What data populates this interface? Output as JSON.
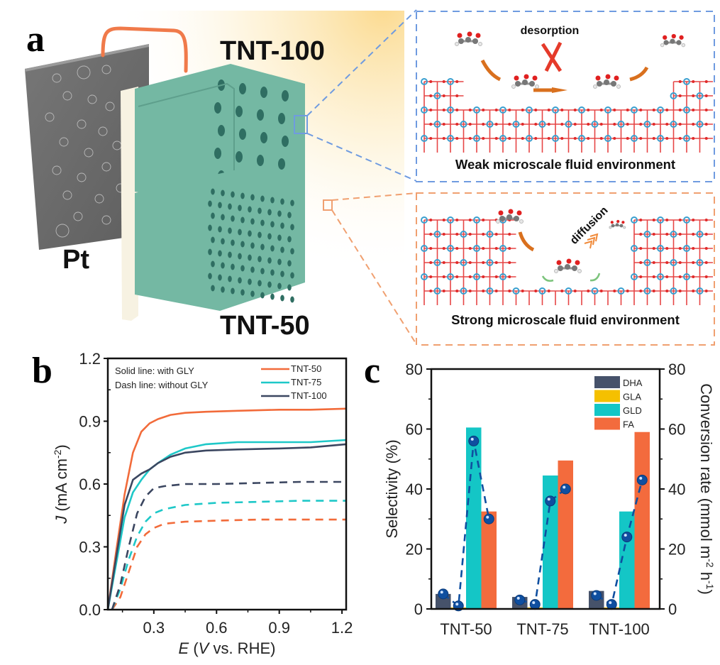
{
  "panel_a": {
    "letter": "a",
    "labels": {
      "pt": "Pt",
      "tnt100": "TNT-100",
      "tnt50": "TNT-50"
    },
    "inset_top": {
      "caption": "Weak microscale fluid environment",
      "annotation": "desorption",
      "border_color": "#6f9be0"
    },
    "inset_bottom": {
      "caption": "Strong microscale fluid environment",
      "annotation": "diffusion",
      "border_color": "#f0a070"
    },
    "colors": {
      "nanotube": "#74b8a3",
      "wire": "#f07a4a",
      "pt_plate": "#6b6b6b",
      "glow": "#fbd889"
    }
  },
  "panel_b": {
    "letter": "b"
  },
  "panel_c": {
    "letter": "c"
  },
  "chart_data": [
    {
      "type": "line",
      "title": "",
      "xlabel": "E (V vs. RHE)",
      "ylabel": "J (mA cm-2)",
      "xlim": [
        0.08,
        1.22
      ],
      "ylim": [
        0.0,
        1.2
      ],
      "xticks": [
        "0.3",
        "0.6",
        "0.9",
        "1.2"
      ],
      "yticks": [
        "0.0",
        "0.3",
        "0.6",
        "0.9",
        "1.2"
      ],
      "grid": false,
      "annotations": [
        "Solid line: with GLY",
        "Dash line: without GLY"
      ],
      "legend": {
        "placement": "top-right",
        "entries": [
          "TNT-50",
          "TNT-75",
          "TNT-100"
        ]
      },
      "series": [
        {
          "name": "TNT-50",
          "style": "solid",
          "color": "#f26b3a",
          "x": [
            0.08,
            0.12,
            0.16,
            0.2,
            0.24,
            0.28,
            0.32,
            0.38,
            0.45,
            0.55,
            0.7,
            0.9,
            1.05,
            1.22
          ],
          "y": [
            0.0,
            0.28,
            0.55,
            0.75,
            0.85,
            0.89,
            0.91,
            0.93,
            0.94,
            0.945,
            0.95,
            0.955,
            0.955,
            0.96
          ]
        },
        {
          "name": "TNT-75",
          "style": "solid",
          "color": "#1ec8c8",
          "x": [
            0.08,
            0.12,
            0.16,
            0.2,
            0.24,
            0.28,
            0.32,
            0.38,
            0.45,
            0.55,
            0.7,
            0.9,
            1.05,
            1.22
          ],
          "y": [
            0.0,
            0.22,
            0.44,
            0.56,
            0.62,
            0.67,
            0.7,
            0.74,
            0.77,
            0.79,
            0.8,
            0.8,
            0.8,
            0.81
          ]
        },
        {
          "name": "TNT-100",
          "style": "solid",
          "color": "#3b4660",
          "x": [
            0.08,
            0.12,
            0.16,
            0.2,
            0.24,
            0.28,
            0.32,
            0.38,
            0.45,
            0.55,
            0.7,
            0.9,
            1.05,
            1.22
          ],
          "y": [
            0.0,
            0.25,
            0.5,
            0.62,
            0.65,
            0.67,
            0.7,
            0.73,
            0.75,
            0.76,
            0.765,
            0.77,
            0.775,
            0.79
          ]
        },
        {
          "name": "TNT-50 (without GLY)",
          "style": "dash",
          "color": "#f26b3a",
          "x": [
            0.1,
            0.14,
            0.18,
            0.22,
            0.26,
            0.3,
            0.35,
            0.45,
            0.6,
            0.8,
            1.0,
            1.22
          ],
          "y": [
            0.0,
            0.06,
            0.18,
            0.3,
            0.36,
            0.39,
            0.41,
            0.42,
            0.425,
            0.43,
            0.43,
            0.43
          ]
        },
        {
          "name": "TNT-75 (without GLY)",
          "style": "dash",
          "color": "#1ec8c8",
          "x": [
            0.1,
            0.14,
            0.18,
            0.22,
            0.26,
            0.3,
            0.35,
            0.45,
            0.6,
            0.8,
            1.0,
            1.22
          ],
          "y": [
            0.0,
            0.1,
            0.24,
            0.35,
            0.42,
            0.46,
            0.48,
            0.5,
            0.51,
            0.515,
            0.52,
            0.52
          ]
        },
        {
          "name": "TNT-100 (without GLY)",
          "style": "dash",
          "color": "#3b4660",
          "x": [
            0.1,
            0.14,
            0.18,
            0.22,
            0.26,
            0.3,
            0.35,
            0.45,
            0.6,
            0.8,
            1.0,
            1.22
          ],
          "y": [
            0.0,
            0.12,
            0.3,
            0.46,
            0.54,
            0.58,
            0.59,
            0.6,
            0.6,
            0.605,
            0.61,
            0.61
          ]
        }
      ]
    },
    {
      "type": "bar",
      "title": "",
      "xlabel": "",
      "ylabel": "Selectivity (%)",
      "y2label": "Conversion rate (mmol m-2 h-1)",
      "categories": [
        "TNT-50",
        "TNT-75",
        "TNT-100"
      ],
      "ylim": [
        0,
        80
      ],
      "y2lim": [
        0,
        80
      ],
      "yticks": [
        "0",
        "20",
        "40",
        "60",
        "80"
      ],
      "grid": false,
      "legend": {
        "placement": "top-right",
        "entries": [
          "DHA",
          "GLA",
          "GLD",
          "FA"
        ]
      },
      "series": [
        {
          "name": "DHA",
          "color": "#46526a",
          "values": [
            5,
            4,
            6
          ]
        },
        {
          "name": "GLA",
          "color": "#f5c000",
          "values": [
            0.5,
            0.5,
            0.5
          ]
        },
        {
          "name": "GLD",
          "color": "#14c6c6",
          "values": [
            60.5,
            44.5,
            32.5
          ]
        },
        {
          "name": "FA",
          "color": "#f36b3d",
          "values": [
            32.5,
            49.5,
            59
          ]
        }
      ],
      "conversion_rate": {
        "color": "#0f4fa0",
        "style": "dashed line with spheres",
        "values": [
          [
            5,
            1,
            56,
            30
          ],
          [
            3,
            1.5,
            36,
            40
          ],
          [
            4.5,
            1.5,
            24,
            43
          ]
        ]
      }
    }
  ]
}
